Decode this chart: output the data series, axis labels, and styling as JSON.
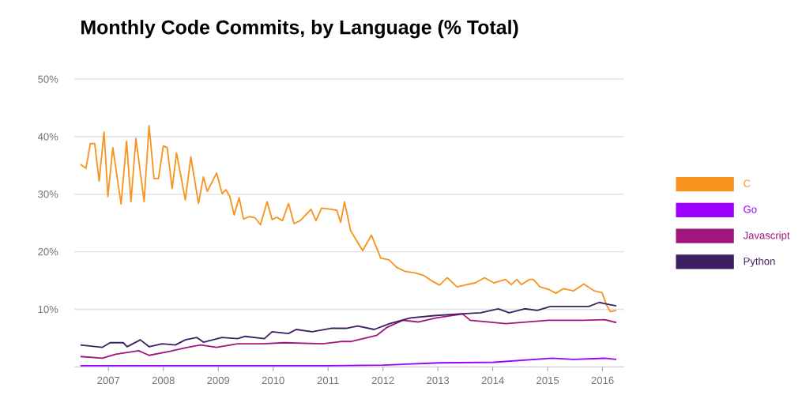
{
  "chart_data": {
    "type": "line",
    "title": "Monthly Code Commits, by Language (% Total)",
    "xlim": [
      2006.38,
      2016.39
    ],
    "xticks": [
      2007,
      2008,
      2009,
      2010,
      2011,
      2012,
      2013,
      2014,
      2015,
      2016
    ],
    "ylim": [
      0,
      50
    ],
    "yticks": [
      {
        "value": 10,
        "label": "10%"
      },
      {
        "value": 20,
        "label": "20%"
      },
      {
        "value": 30,
        "label": "30%"
      },
      {
        "value": 40,
        "label": "40%"
      },
      {
        "value": 50,
        "label": "50%"
      }
    ],
    "grid": "y",
    "legend": "right",
    "line_style": "solid",
    "series": [
      {
        "name": "C",
        "color": "#f7931e",
        "x": [
          2006.49,
          2006.59,
          2006.67,
          2006.75,
          2006.83,
          2006.92,
          2006.99,
          2007.08,
          2007.23,
          2007.33,
          2007.41,
          2007.5,
          2007.65,
          2007.74,
          2007.83,
          2007.91,
          2008.0,
          2008.07,
          2008.16,
          2008.24,
          2008.4,
          2008.5,
          2008.64,
          2008.73,
          2008.8,
          2008.87,
          2008.97,
          2009.07,
          2009.14,
          2009.21,
          2009.29,
          2009.38,
          2009.46,
          2009.57,
          2009.67,
          2009.77,
          2009.89,
          2009.98,
          2010.07,
          2010.17,
          2010.28,
          2010.38,
          2010.49,
          2010.69,
          2010.78,
          2010.88,
          2011.05,
          2011.16,
          2011.23,
          2011.3,
          2011.41,
          2011.63,
          2011.79,
          2011.96,
          2012.11,
          2012.25,
          2012.4,
          2012.6,
          2012.74,
          2012.88,
          2013.03,
          2013.17,
          2013.35,
          2013.49,
          2013.68,
          2013.85,
          2014.02,
          2014.23,
          2014.34,
          2014.44,
          2014.52,
          2014.67,
          2014.74,
          2014.86,
          2015.01,
          2015.15,
          2015.29,
          2015.47,
          2015.66,
          2015.85,
          2015.99,
          2016.07,
          2016.14,
          2016.25
        ],
        "values": [
          35.2,
          34.5,
          38.8,
          38.8,
          32.3,
          40.8,
          29.6,
          38.1,
          28.3,
          39.2,
          28.7,
          39.7,
          28.7,
          41.9,
          32.7,
          32.7,
          38.4,
          38.1,
          31.0,
          37.2,
          29.0,
          36.5,
          28.4,
          33.0,
          30.5,
          31.8,
          33.7,
          30.1,
          30.8,
          29.6,
          26.4,
          29.4,
          25.7,
          26.1,
          25.9,
          24.7,
          28.7,
          25.6,
          26.0,
          25.4,
          28.4,
          24.9,
          25.4,
          27.4,
          25.4,
          27.6,
          27.4,
          27.2,
          25.1,
          28.7,
          23.7,
          20.2,
          22.9,
          18.9,
          18.6,
          17.3,
          16.6,
          16.3,
          15.9,
          15.0,
          14.2,
          15.5,
          13.9,
          14.2,
          14.6,
          15.5,
          14.6,
          15.2,
          14.3,
          15.2,
          14.3,
          15.2,
          15.2,
          13.9,
          13.5,
          12.8,
          13.6,
          13.2,
          14.4,
          13.2,
          12.9,
          10.8,
          9.6,
          9.8
        ]
      },
      {
        "name": "Go",
        "color": "#9b00ff",
        "x": [
          2006.49,
          2011.0,
          2012.0,
          2013.03,
          2014.02,
          2015.08,
          2015.47,
          2016.04,
          2016.25
        ],
        "values": [
          0.2,
          0.2,
          0.3,
          0.7,
          0.8,
          1.5,
          1.3,
          1.5,
          1.3
        ]
      },
      {
        "name": "Javascript",
        "color": "#a0167f",
        "x": [
          2006.49,
          2006.89,
          2007.13,
          2007.55,
          2007.74,
          2008.12,
          2008.44,
          2008.68,
          2008.97,
          2009.35,
          2009.81,
          2010.2,
          2010.9,
          2011.23,
          2011.41,
          2011.89,
          2012.08,
          2012.36,
          2012.64,
          2012.97,
          2013.45,
          2013.59,
          2014.24,
          2015.01,
          2015.66,
          2016.04,
          2016.25
        ],
        "values": [
          1.8,
          1.5,
          2.2,
          2.8,
          2.0,
          2.7,
          3.4,
          3.8,
          3.4,
          4.0,
          4.0,
          4.2,
          4.0,
          4.4,
          4.4,
          5.5,
          6.9,
          8.1,
          7.8,
          8.5,
          9.2,
          8.1,
          7.5,
          8.1,
          8.1,
          8.2,
          7.7
        ]
      },
      {
        "name": "Python",
        "color": "#3f1f63",
        "x": [
          2006.49,
          2006.89,
          2007.03,
          2007.27,
          2007.34,
          2007.58,
          2007.74,
          2007.98,
          2008.22,
          2008.4,
          2008.61,
          2008.73,
          2009.07,
          2009.35,
          2009.49,
          2009.84,
          2009.98,
          2010.28,
          2010.42,
          2010.71,
          2011.05,
          2011.33,
          2011.54,
          2011.84,
          2012.12,
          2012.5,
          2012.93,
          2013.39,
          2013.78,
          2014.1,
          2014.3,
          2014.58,
          2014.81,
          2015.05,
          2015.43,
          2015.75,
          2015.94,
          2016.08,
          2016.25
        ],
        "values": [
          3.8,
          3.4,
          4.2,
          4.2,
          3.5,
          4.7,
          3.5,
          4.0,
          3.8,
          4.7,
          5.1,
          4.3,
          5.1,
          4.9,
          5.3,
          4.9,
          6.1,
          5.8,
          6.5,
          6.1,
          6.7,
          6.7,
          7.1,
          6.5,
          7.5,
          8.5,
          8.9,
          9.2,
          9.4,
          10.1,
          9.4,
          10.1,
          9.8,
          10.5,
          10.5,
          10.5,
          11.2,
          10.9,
          10.6
        ]
      }
    ]
  }
}
